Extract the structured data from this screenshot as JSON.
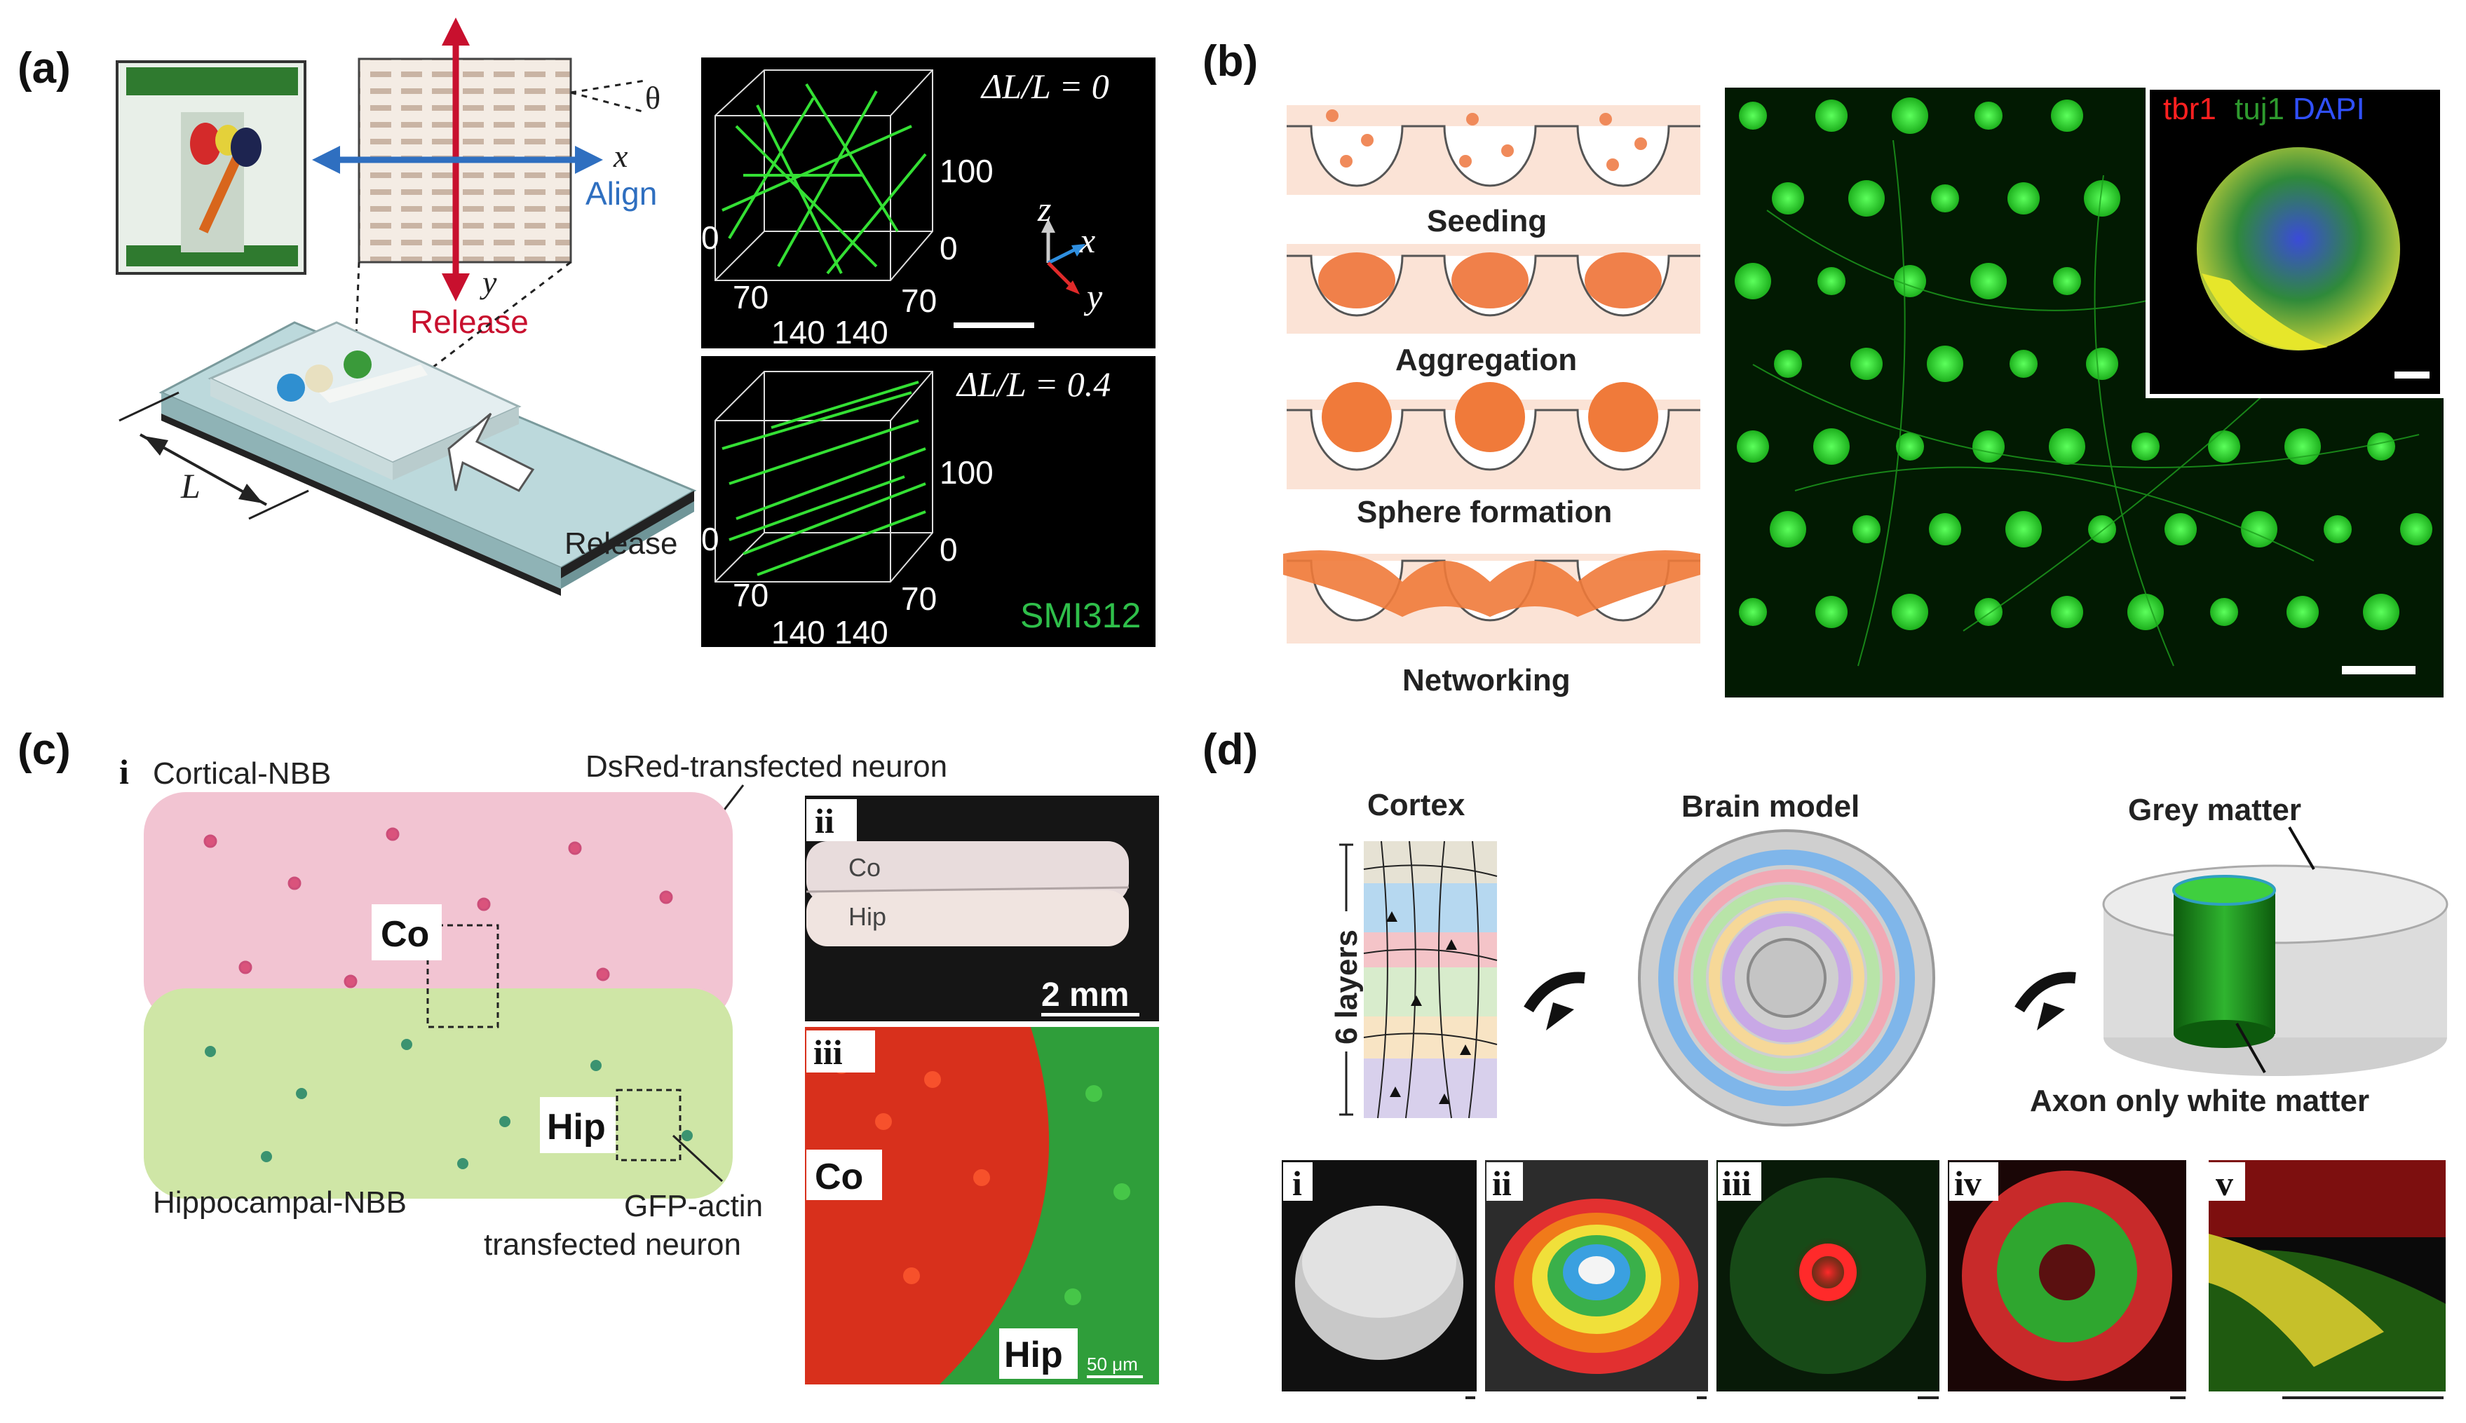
{
  "panels": {
    "a": {
      "label": "(a)",
      "theta": "θ",
      "x_axis": "x",
      "align": "Align",
      "y_axis": "y",
      "release_top": "Release",
      "L": "L",
      "release_bottom": "Release",
      "top_image": {
        "strain": "ΔL/L = 0",
        "ticks": [
          "100",
          "0",
          "0",
          "70",
          "140",
          "140",
          "70"
        ]
      },
      "bottom_image": {
        "strain": "ΔL/L = 0.4",
        "ticks": [
          "100",
          "0",
          "0",
          "70",
          "140",
          "140",
          "70"
        ],
        "stain": "SMI312"
      },
      "axes3d": {
        "z": "z",
        "x": "x",
        "y": "y"
      }
    },
    "b": {
      "label": "(b)",
      "steps": [
        "Seeding",
        "Aggregation",
        "Sphere formation",
        "Networking"
      ],
      "inset_labels": [
        {
          "text": "tbr1",
          "color": "#ff2020"
        },
        {
          "text": "tuj1",
          "color": "#2e9a2e"
        },
        {
          "text": "DAPI",
          "color": "#3050ff"
        }
      ]
    },
    "c": {
      "label": "(c)",
      "sub_i": "i",
      "cortical": "Cortical-NBB",
      "dsred": "DsRed-transfected neuron",
      "co": "Co",
      "hip": "Hip",
      "hippocampal": "Hippocampal-NBB",
      "gfp_line1": "GFP-actin",
      "gfp_line2": "transfected neuron",
      "sub_ii": "ii",
      "ii_co": "Co",
      "ii_hip": "Hip",
      "scale_2mm": "2 mm",
      "sub_iii": "iii",
      "iii_co": "Co",
      "iii_hip": "Hip",
      "scale_50um": "50 μm"
    },
    "d": {
      "label": "(d)",
      "cortex": "Cortex",
      "brain_model": "Brain model",
      "grey_matter": "Grey matter",
      "six_layers": "6 layers",
      "white_matter": "Axon only white matter",
      "subpanels": [
        "i",
        "ii",
        "iii",
        "iv",
        "v"
      ]
    }
  },
  "colors": {
    "release_arrow": "#c8102e",
    "align_arrow": "#2f6fc0",
    "fluor_green": "#33ff33",
    "fluor_red": "#ff3a1a"
  }
}
